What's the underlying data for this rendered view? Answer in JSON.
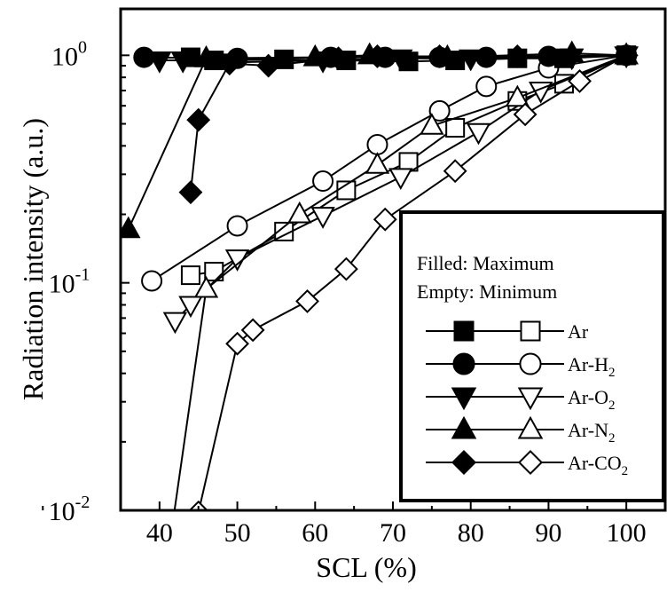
{
  "chart_data": {
    "type": "line",
    "title": "",
    "xlabel": "SCL (%)",
    "ylabel": "Radiation intensity (a.u.)",
    "xlim": [
      35,
      105
    ],
    "ylim": [
      0.01,
      1.6
    ],
    "yscale": "log",
    "x_ticks": [
      "40",
      "50",
      "60",
      "70",
      "80",
      "90",
      "100"
    ],
    "y_ticks": [
      {
        "base": "10",
        "exp": "0"
      },
      {
        "base": "10",
        "exp": "-1"
      },
      {
        "base": "10",
        "exp": "-2"
      }
    ],
    "legend": {
      "placement": "lower-right",
      "note_filled": "Filled: Maximum",
      "note_empty": "Empty: Minimum",
      "entries": [
        {
          "text": "Ar",
          "sub": "",
          "marker": "square"
        },
        {
          "text": "Ar-H",
          "sub": "2",
          "marker": "circle"
        },
        {
          "text": "Ar-O",
          "sub": "2",
          "marker": "triangle-down"
        },
        {
          "text": "Ar-N",
          "sub": "2",
          "marker": "triangle-up"
        },
        {
          "text": "Ar-CO",
          "sub": "2",
          "marker": "diamond"
        }
      ]
    },
    "series": [
      {
        "name": "Ar (max)",
        "marker": "square",
        "filled": true,
        "points": [
          [
            44,
            0.98
          ],
          [
            47,
            0.95
          ],
          [
            56,
            0.96
          ],
          [
            64,
            0.95
          ],
          [
            72,
            0.94
          ],
          [
            78,
            0.95
          ],
          [
            86,
            0.97
          ],
          [
            92,
            0.97
          ],
          [
            100,
            1.0
          ]
        ]
      },
      {
        "name": "Ar (min)",
        "marker": "square",
        "filled": false,
        "points": [
          [
            44,
            0.108
          ],
          [
            47,
            0.112
          ],
          [
            56,
            0.168
          ],
          [
            64,
            0.255
          ],
          [
            72,
            0.34
          ],
          [
            78,
            0.48
          ],
          [
            86,
            0.63
          ],
          [
            92,
            0.75
          ],
          [
            100,
            1.0
          ]
        ]
      },
      {
        "name": "Ar-H2 (max)",
        "marker": "circle",
        "filled": true,
        "points": [
          [
            38,
            0.98
          ],
          [
            50,
            0.97
          ],
          [
            62,
            0.98
          ],
          [
            69,
            0.98
          ],
          [
            76,
            0.98
          ],
          [
            82,
            0.98
          ],
          [
            90,
            0.99
          ],
          [
            100,
            1.0
          ]
        ]
      },
      {
        "name": "Ar-H2 (min)",
        "marker": "circle",
        "filled": false,
        "points": [
          [
            39,
            0.102
          ],
          [
            50,
            0.178
          ],
          [
            61,
            0.28
          ],
          [
            68,
            0.405
          ],
          [
            76,
            0.57
          ],
          [
            82,
            0.73
          ],
          [
            90,
            0.88
          ],
          [
            100,
            1.0
          ]
        ]
      },
      {
        "name": "Ar-O2 (max)",
        "marker": "triangle-down",
        "filled": true,
        "points": [
          [
            40,
            0.95
          ],
          [
            43,
            0.95
          ],
          [
            49,
            0.93
          ],
          [
            61,
            0.95
          ],
          [
            71,
            0.97
          ],
          [
            80,
            0.97
          ],
          [
            93,
            0.98
          ],
          [
            100,
            1.0
          ]
        ]
      },
      {
        "name": "Ar-O2 (min)",
        "marker": "triangle-down",
        "filled": false,
        "points": [
          [
            42,
            0.068
          ],
          [
            44,
            0.08
          ],
          [
            50,
            0.128
          ],
          [
            61,
            0.197
          ],
          [
            71,
            0.292
          ],
          [
            81,
            0.46
          ],
          [
            89,
            0.7
          ],
          [
            100,
            1.0
          ]
        ]
      },
      {
        "name": "Ar-N2 (max)",
        "marker": "triangle-up",
        "filled": true,
        "points": [
          [
            36,
            0.172
          ],
          [
            46,
            0.97
          ],
          [
            60,
            0.98
          ],
          [
            67,
            1.0
          ],
          [
            77,
            0.98
          ],
          [
            93,
            1.02
          ],
          [
            100,
            1.0
          ]
        ]
      },
      {
        "name": "Ar-N2 (min)",
        "marker": "triangle-up",
        "filled": false,
        "points": [
          [
            41,
            0.006
          ],
          [
            46,
            0.094
          ],
          [
            58,
            0.2
          ],
          [
            68,
            0.33
          ],
          [
            75,
            0.49
          ],
          [
            86,
            0.65
          ],
          [
            100,
            1.0
          ]
        ]
      },
      {
        "name": "Ar-CO2 (max)",
        "marker": "diamond",
        "filled": true,
        "points": [
          [
            44,
            0.25
          ],
          [
            45,
            0.52
          ],
          [
            49,
            0.92
          ],
          [
            54,
            0.9
          ],
          [
            63,
            0.97
          ],
          [
            68,
            0.99
          ],
          [
            76,
            0.99
          ],
          [
            86,
            0.99
          ],
          [
            100,
            1.0
          ]
        ]
      },
      {
        "name": "Ar-CO2 (min)",
        "marker": "diamond",
        "filled": false,
        "points": [
          [
            45,
            0.0065
          ],
          [
            45,
            0.0098
          ],
          [
            50,
            0.054
          ],
          [
            52,
            0.062
          ],
          [
            59,
            0.083
          ],
          [
            64,
            0.115
          ],
          [
            69,
            0.19
          ],
          [
            78,
            0.31
          ],
          [
            87,
            0.55
          ],
          [
            94,
            0.77
          ],
          [
            100,
            1.0
          ]
        ]
      }
    ]
  }
}
